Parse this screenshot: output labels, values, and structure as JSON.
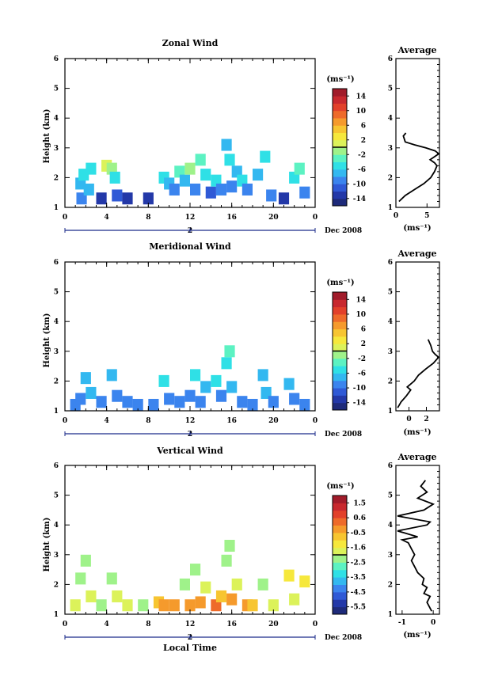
{
  "xlabel": "Local Time",
  "date_label": "Dec 2008",
  "day_tick": "2",
  "colorbar_unit": "(ms⁻¹)",
  "avg_unit": "(ms⁻¹)",
  "chart_data": [
    {
      "type": "heatmap",
      "title": "Zonal Wind",
      "ylabel": "Height (km)",
      "xlim": [
        0,
        24
      ],
      "ylim": [
        1,
        6
      ],
      "xticks": [
        "0",
        "4",
        "8",
        "12",
        "16",
        "20",
        "0"
      ],
      "yticks": [
        "1",
        "2",
        "3",
        "4",
        "5",
        "6"
      ],
      "colorbar": {
        "ticks": [
          "14",
          "10",
          "6",
          "2",
          "-2",
          "-6",
          "-10",
          "-14"
        ],
        "range": [
          -16,
          16
        ]
      },
      "cells": [
        [
          1.6,
          1.3,
          3
        ],
        [
          1.5,
          1.8,
          4
        ],
        [
          1.8,
          2.1,
          5
        ],
        [
          2.5,
          2.3,
          5
        ],
        [
          2.3,
          1.6,
          4
        ],
        [
          3.5,
          1.3,
          1
        ],
        [
          4.0,
          2.4,
          8
        ],
        [
          4.5,
          2.3,
          7
        ],
        [
          4.8,
          2.0,
          5
        ],
        [
          5.0,
          1.4,
          2
        ],
        [
          6.0,
          1.3,
          1
        ],
        [
          8.0,
          1.3,
          1
        ],
        [
          9.5,
          2.0,
          5
        ],
        [
          10.0,
          1.8,
          4
        ],
        [
          10.5,
          1.6,
          3
        ],
        [
          11.0,
          2.2,
          6
        ],
        [
          11.5,
          1.9,
          4
        ],
        [
          12.0,
          2.3,
          7
        ],
        [
          12.5,
          1.6,
          3
        ],
        [
          13.0,
          2.6,
          6
        ],
        [
          13.5,
          2.1,
          5
        ],
        [
          14.0,
          1.5,
          2
        ],
        [
          14.5,
          1.9,
          5
        ],
        [
          15.0,
          1.6,
          3
        ],
        [
          15.5,
          3.1,
          4
        ],
        [
          15.8,
          2.6,
          5
        ],
        [
          16.0,
          1.7,
          3
        ],
        [
          16.5,
          2.2,
          4
        ],
        [
          17.0,
          1.9,
          5
        ],
        [
          17.5,
          1.6,
          3
        ],
        [
          18.5,
          2.1,
          4
        ],
        [
          19.2,
          2.7,
          5
        ],
        [
          19.8,
          1.4,
          3
        ],
        [
          21.0,
          1.3,
          1
        ],
        [
          22.0,
          2.0,
          5
        ],
        [
          22.5,
          2.3,
          6
        ],
        [
          23.0,
          1.5,
          3
        ]
      ],
      "avg": {
        "title": "Average",
        "xlim": [
          0,
          7
        ],
        "xticks": [
          "0",
          "5"
        ],
        "xtick_values": [
          0,
          5
        ],
        "x": [
          0.5,
          1.5,
          3.0,
          4.5,
          5.6,
          6.2,
          6.6,
          6.2,
          5.5,
          6.9,
          6.3,
          4.8,
          3.0,
          1.5,
          1.2,
          1.6
        ],
        "y": [
          1.2,
          1.4,
          1.6,
          1.8,
          2.0,
          2.2,
          2.4,
          2.5,
          2.6,
          2.8,
          2.9,
          3.0,
          3.1,
          3.2,
          3.4,
          3.5
        ]
      }
    },
    {
      "type": "heatmap",
      "title": "Meridional Wind",
      "ylabel": "Height (km)",
      "xlim": [
        0,
        24
      ],
      "ylim": [
        1,
        6
      ],
      "xticks": [
        "0",
        "4",
        "8",
        "12",
        "16",
        "20",
        "0"
      ],
      "yticks": [
        "1",
        "2",
        "3",
        "4",
        "5",
        "6"
      ],
      "colorbar": {
        "ticks": [
          "14",
          "10",
          "6",
          "2",
          "-2",
          "-6",
          "-10",
          "-14"
        ],
        "range": [
          -16,
          16
        ]
      },
      "cells": [
        [
          1.0,
          1.2,
          3
        ],
        [
          1.5,
          1.4,
          3
        ],
        [
          2.0,
          2.1,
          4
        ],
        [
          2.5,
          1.6,
          4
        ],
        [
          3.5,
          1.3,
          3
        ],
        [
          4.5,
          2.2,
          4
        ],
        [
          5.0,
          1.5,
          3
        ],
        [
          6.0,
          1.3,
          3
        ],
        [
          7.0,
          1.2,
          3
        ],
        [
          8.5,
          1.2,
          3
        ],
        [
          9.5,
          2.0,
          5
        ],
        [
          10.0,
          1.4,
          3
        ],
        [
          11.0,
          1.3,
          3
        ],
        [
          12.0,
          1.5,
          3
        ],
        [
          12.5,
          2.2,
          5
        ],
        [
          13.0,
          1.3,
          3
        ],
        [
          13.5,
          1.8,
          4
        ],
        [
          14.5,
          2.0,
          5
        ],
        [
          15.0,
          1.5,
          3
        ],
        [
          15.5,
          2.6,
          5
        ],
        [
          15.8,
          3.0,
          6
        ],
        [
          16.0,
          1.8,
          4
        ],
        [
          17.0,
          1.3,
          3
        ],
        [
          18.0,
          1.2,
          3
        ],
        [
          19.0,
          2.2,
          4
        ],
        [
          19.3,
          1.6,
          4
        ],
        [
          20.0,
          1.3,
          3
        ],
        [
          21.5,
          1.9,
          4
        ],
        [
          22.0,
          1.4,
          3
        ],
        [
          23.0,
          1.2,
          3
        ]
      ],
      "avg": {
        "title": "Average",
        "xlim": [
          -1.5,
          3.5
        ],
        "xticks": [
          "0",
          "2"
        ],
        "xtick_values": [
          0,
          2
        ],
        "x": [
          -1.3,
          -0.9,
          -0.3,
          0.2,
          -0.2,
          0.6,
          1.1,
          1.9,
          2.8,
          3.4,
          3.0,
          2.7,
          2.5,
          2.2
        ],
        "y": [
          1.1,
          1.3,
          1.5,
          1.7,
          1.8,
          2.0,
          2.2,
          2.4,
          2.6,
          2.8,
          2.9,
          3.0,
          3.2,
          3.4
        ]
      }
    },
    {
      "type": "heatmap",
      "title": "Vertical Wind",
      "ylabel": "Height (km)",
      "xlabel": "Local Time",
      "xlim": [
        0,
        24
      ],
      "ylim": [
        1,
        6
      ],
      "xticks": [
        "0",
        "4",
        "8",
        "12",
        "16",
        "20",
        "0"
      ],
      "yticks": [
        "1",
        "2",
        "3",
        "4",
        "5",
        "6"
      ],
      "colorbar": {
        "ticks": [
          "1.5",
          "0.6",
          "-0.5",
          "-1.6",
          "-2.5",
          "-3.5",
          "-4.5",
          "-5.5"
        ],
        "range": [
          -6,
          2
        ]
      },
      "cells": [
        [
          1.0,
          1.3,
          8
        ],
        [
          1.5,
          2.2,
          7
        ],
        [
          2.0,
          2.8,
          7
        ],
        [
          2.5,
          1.6,
          8
        ],
        [
          3.5,
          1.3,
          7
        ],
        [
          4.5,
          2.2,
          7
        ],
        [
          5.0,
          1.6,
          8
        ],
        [
          6.0,
          1.3,
          8
        ],
        [
          7.5,
          1.3,
          7
        ],
        [
          9.0,
          1.4,
          10
        ],
        [
          9.5,
          1.3,
          11
        ],
        [
          10.5,
          1.3,
          11
        ],
        [
          11.5,
          2.0,
          7
        ],
        [
          12.0,
          1.3,
          11
        ],
        [
          12.5,
          2.5,
          7
        ],
        [
          13.0,
          1.4,
          11
        ],
        [
          13.5,
          1.9,
          8
        ],
        [
          14.5,
          1.3,
          12
        ],
        [
          15.0,
          1.6,
          10
        ],
        [
          15.5,
          2.8,
          7
        ],
        [
          15.8,
          3.3,
          7
        ],
        [
          16.0,
          1.5,
          11
        ],
        [
          16.5,
          2.0,
          8
        ],
        [
          17.5,
          1.3,
          11
        ],
        [
          18.0,
          1.3,
          10
        ],
        [
          19.0,
          2.0,
          7
        ],
        [
          20.0,
          1.3,
          8
        ],
        [
          21.5,
          2.3,
          9
        ],
        [
          22.0,
          1.5,
          8
        ],
        [
          23.0,
          2.1,
          9
        ]
      ],
      "avg": {
        "title": "Average",
        "xlim": [
          -1.2,
          0.2
        ],
        "xticks": [
          "-1",
          "0"
        ],
        "xtick_values": [
          -1,
          0
        ],
        "x": [
          -0.05,
          -0.2,
          -0.1,
          -0.3,
          -0.2,
          -0.35,
          -0.3,
          -0.5,
          -0.6,
          -0.7,
          -0.6,
          -0.7,
          -0.8,
          -1.0,
          -0.5,
          -1.15,
          -0.2,
          -0.1,
          -1.15,
          -0.3,
          0.0,
          -0.5,
          -0.2,
          -0.4,
          -0.25
        ],
        "y": [
          1.1,
          1.4,
          1.6,
          1.7,
          1.9,
          2.0,
          2.2,
          2.4,
          2.6,
          2.8,
          3.0,
          3.2,
          3.4,
          3.5,
          3.6,
          3.8,
          4.0,
          4.1,
          4.3,
          4.5,
          4.7,
          4.9,
          5.1,
          5.3,
          5.5
        ]
      }
    }
  ]
}
